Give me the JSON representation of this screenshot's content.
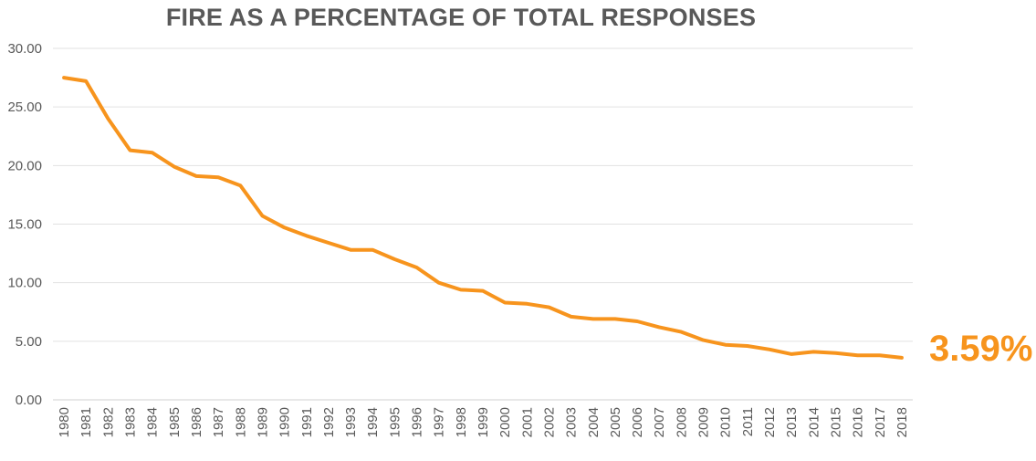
{
  "chart_data": {
    "type": "line",
    "title": "FIRE AS A PERCENTAGE OF TOTAL RESPONSES",
    "xlabel": "",
    "ylabel": "",
    "ylim": [
      0,
      30
    ],
    "yticks": [
      "0.00",
      "5.00",
      "10.00",
      "15.00",
      "20.00",
      "25.00",
      "30.00"
    ],
    "grid": true,
    "legend": "none",
    "x": [
      "1980",
      "1981",
      "1982",
      "1983",
      "1984",
      "1985",
      "1986",
      "1987",
      "1988",
      "1989",
      "1990",
      "1991",
      "1992",
      "1993",
      "1994",
      "1995",
      "1996",
      "1997",
      "1998",
      "1999",
      "2000",
      "2001",
      "2002",
      "2003",
      "2004",
      "2005",
      "2006",
      "2007",
      "2008",
      "2009",
      "2010",
      "2011",
      "2012",
      "2013",
      "2014",
      "2015",
      "2016",
      "2017",
      "2018"
    ],
    "series": [
      {
        "color": "#F7941D",
        "values": [
          27.5,
          27.2,
          24.0,
          21.3,
          21.1,
          19.9,
          19.1,
          19.0,
          18.3,
          15.7,
          14.7,
          14.0,
          13.4,
          12.8,
          12.8,
          12.0,
          11.3,
          10.0,
          9.4,
          9.3,
          8.3,
          8.2,
          7.9,
          7.1,
          6.9,
          6.9,
          6.7,
          6.2,
          5.8,
          5.1,
          4.7,
          4.6,
          4.3,
          3.9,
          4.1,
          4.0,
          3.8,
          3.8,
          3.59
        ]
      }
    ],
    "annotation": "3.59%"
  }
}
